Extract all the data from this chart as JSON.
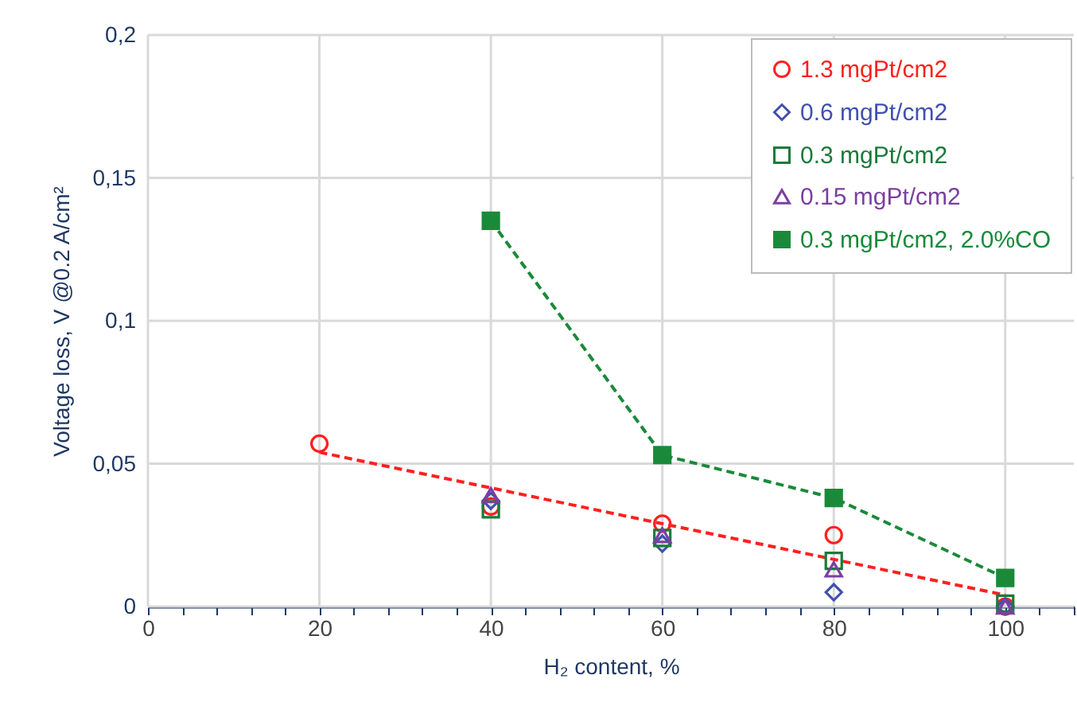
{
  "chart_data": {
    "type": "scatter",
    "xlabel": "H₂ content, %",
    "ylabel": "Voltage loss, V @0.2 A/cm²",
    "xlim": [
      0,
      108
    ],
    "ylim": [
      0,
      0.2
    ],
    "xticks": [
      0,
      {
        "value": 4,
        "label": null
      },
      {
        "value": 8,
        "label": null
      },
      {
        "value": 12,
        "label": null
      },
      {
        "value": 16,
        "label": null
      },
      20,
      {
        "value": 24,
        "label": null
      },
      {
        "value": 28,
        "label": null
      },
      {
        "value": 32,
        "label": null
      },
      {
        "value": 36,
        "label": null
      },
      40,
      {
        "value": 44,
        "label": null
      },
      {
        "value": 48,
        "label": null
      },
      {
        "value": 52,
        "label": null
      },
      {
        "value": 56,
        "label": null
      },
      60,
      {
        "value": 64,
        "label": null
      },
      {
        "value": 68,
        "label": null
      },
      {
        "value": 72,
        "label": null
      },
      {
        "value": 76,
        "label": null
      },
      80,
      {
        "value": 84,
        "label": null
      },
      {
        "value": 88,
        "label": null
      },
      {
        "value": 92,
        "label": null
      },
      {
        "value": 96,
        "label": null
      },
      100,
      {
        "value": 104,
        "label": null
      },
      {
        "value": 108,
        "label": null
      }
    ],
    "yticks": [
      0,
      {
        "value": 0.05,
        "label": "0,05"
      },
      {
        "value": 0.1,
        "label": "0,1"
      },
      {
        "value": 0.15,
        "label": "0,15"
      },
      {
        "value": 0.2,
        "label": "0,2"
      }
    ],
    "grid": true,
    "legend": "top right",
    "series": [
      {
        "type": "scatter",
        "name": "1.3 mgPt/cm2",
        "color": "#ff2020",
        "marker": "circle",
        "x": [
          20,
          40,
          60,
          80,
          100
        ],
        "values": [
          0.057,
          0.035,
          0.029,
          0.025,
          0.0
        ]
      },
      {
        "type": "scatter",
        "name": "0.6 mgPt/cm2",
        "color": "#4050b0",
        "marker": "diamond",
        "x": [
          40,
          60,
          80,
          100
        ],
        "values": [
          0.037,
          0.022,
          0.005,
          0.0
        ]
      },
      {
        "type": "scatter",
        "name": "0.3 mgPt/cm2",
        "color": "#1a7a3a",
        "marker": "square",
        "x": [
          40,
          60,
          80,
          100
        ],
        "values": [
          0.034,
          0.024,
          0.016,
          0.001
        ]
      },
      {
        "type": "scatter",
        "name": "0.15 mgPt/cm2",
        "color": "#7a3fa0",
        "marker": "triangle",
        "x": [
          40,
          60,
          80,
          100
        ],
        "values": [
          0.039,
          0.025,
          0.013,
          0.0
        ]
      },
      {
        "type": "line",
        "name": "0.3 mgPt/cm2, 2.0%CO",
        "color": "#1a8a3a",
        "marker": "square",
        "line_style": "dashed",
        "x": [
          40,
          60,
          80,
          100
        ],
        "values": [
          0.135,
          0.053,
          0.038,
          0.01
        ]
      },
      {
        "type": "line",
        "color": "#ff2020",
        "marker": "none",
        "line_style": "dashed",
        "x": [
          20,
          100
        ],
        "values": [
          0.054,
          0.004
        ]
      }
    ]
  }
}
